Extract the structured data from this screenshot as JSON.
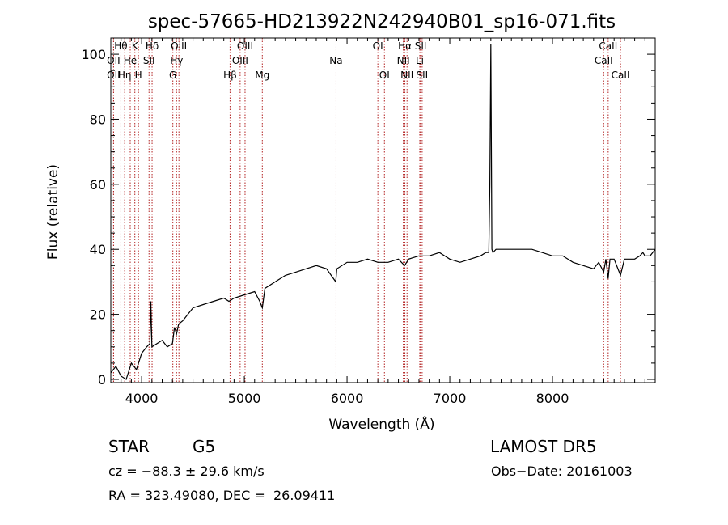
{
  "chart_data": {
    "type": "line",
    "title": "spec-57665-HD213922N242940B01_sp16-071.fits",
    "xlabel": "Wavelength (Å)",
    "ylabel": "Flux (relative)",
    "xlim": [
      3700,
      9000
    ],
    "ylim": [
      -1,
      105
    ],
    "xticks": [
      4000,
      5000,
      6000,
      7000,
      8000
    ],
    "yticks": [
      0,
      20,
      40,
      60,
      80,
      100
    ],
    "grid": false,
    "legend": "none",
    "series": [
      {
        "line_color": "#000000",
        "x": [
          3700,
          3750,
          3800,
          3850,
          3900,
          3950,
          4000,
          4050,
          4080,
          4090,
          4100,
          4150,
          4200,
          4250,
          4300,
          4320,
          4340,
          4360,
          4400,
          4450,
          4500,
          4600,
          4700,
          4800,
          4850,
          4900,
          5000,
          5100,
          5150,
          5175,
          5200,
          5300,
          5400,
          5500,
          5600,
          5700,
          5800,
          5890,
          5900,
          6000,
          6100,
          6200,
          6300,
          6400,
          6500,
          6560,
          6600,
          6700,
          6800,
          6900,
          6950,
          7000,
          7100,
          7200,
          7300,
          7350,
          7380,
          7390,
          7400,
          7410,
          7420,
          7450,
          7500,
          7600,
          7700,
          7800,
          7900,
          8000,
          8100,
          8200,
          8300,
          8400,
          8450,
          8498,
          8520,
          8542,
          8560,
          8600,
          8662,
          8700,
          8800,
          8850,
          8880,
          8900,
          8950,
          9000
        ],
        "y": [
          2,
          4,
          1,
          0,
          5,
          3,
          8,
          10,
          11,
          24,
          10,
          11,
          12,
          10,
          11,
          16,
          14,
          17,
          18,
          20,
          22,
          23,
          24,
          25,
          24,
          25,
          26,
          27,
          24,
          22,
          28,
          30,
          32,
          33,
          34,
          35,
          34,
          30,
          34,
          36,
          36,
          37,
          36,
          36,
          37,
          35,
          37,
          38,
          38,
          39,
          38,
          37,
          36,
          37,
          38,
          39,
          39,
          60,
          103,
          40,
          39,
          40,
          40,
          40,
          40,
          40,
          39,
          38,
          38,
          36,
          35,
          34,
          36,
          33,
          37,
          31,
          37,
          37,
          32,
          37,
          37,
          38,
          39,
          38,
          38,
          40
        ]
      }
    ],
    "line_markers": [
      {
        "label": "Hθ",
        "x": 3798,
        "row": 0
      },
      {
        "label": "OII",
        "x": 3727,
        "row": 1
      },
      {
        "label": "OII",
        "x": 3727,
        "row": 2
      },
      {
        "label": "He",
        "x": 3889,
        "row": 1
      },
      {
        "label": "K",
        "x": 3934,
        "row": 0
      },
      {
        "label": "Hη",
        "x": 3835,
        "row": 2
      },
      {
        "label": "H",
        "x": 3969,
        "row": 2
      },
      {
        "label": "Hδ",
        "x": 4102,
        "row": 0
      },
      {
        "label": "SII",
        "x": 4072,
        "row": 1
      },
      {
        "label": "OIII",
        "x": 4363,
        "row": 0
      },
      {
        "label": "Hγ",
        "x": 4340,
        "row": 1
      },
      {
        "label": "G",
        "x": 4304,
        "row": 2
      },
      {
        "label": "OIII",
        "x": 5007,
        "row": 0
      },
      {
        "label": "OIII",
        "x": 4959,
        "row": 1
      },
      {
        "label": "Hβ",
        "x": 4861,
        "row": 2
      },
      {
        "label": "Mg",
        "x": 5175,
        "row": 2
      },
      {
        "label": "Na",
        "x": 5893,
        "row": 1
      },
      {
        "label": "OI",
        "x": 6300,
        "row": 0
      },
      {
        "label": "OI",
        "x": 6364,
        "row": 2
      },
      {
        "label": "Hα",
        "x": 6563,
        "row": 0
      },
      {
        "label": "NII",
        "x": 6548,
        "row": 1
      },
      {
        "label": "NII",
        "x": 6584,
        "row": 2
      },
      {
        "label": "SII",
        "x": 6717,
        "row": 0
      },
      {
        "label": "Li",
        "x": 6708,
        "row": 1
      },
      {
        "label": "SII",
        "x": 6731,
        "row": 2
      },
      {
        "label": "CaII",
        "x": 8542,
        "row": 0
      },
      {
        "label": "CaII",
        "x": 8498,
        "row": 1
      },
      {
        "label": "CaII",
        "x": 8662,
        "row": 2
      }
    ]
  },
  "info": {
    "object_class": "STAR",
    "subclass": "G5",
    "survey": "LAMOST DR5",
    "cz": "cz = −88.3 ± 29.6 km/s",
    "obs_date": "Obs−Date: 20161003",
    "coords": "RA = 323.49080, DEC =  26.09411"
  }
}
